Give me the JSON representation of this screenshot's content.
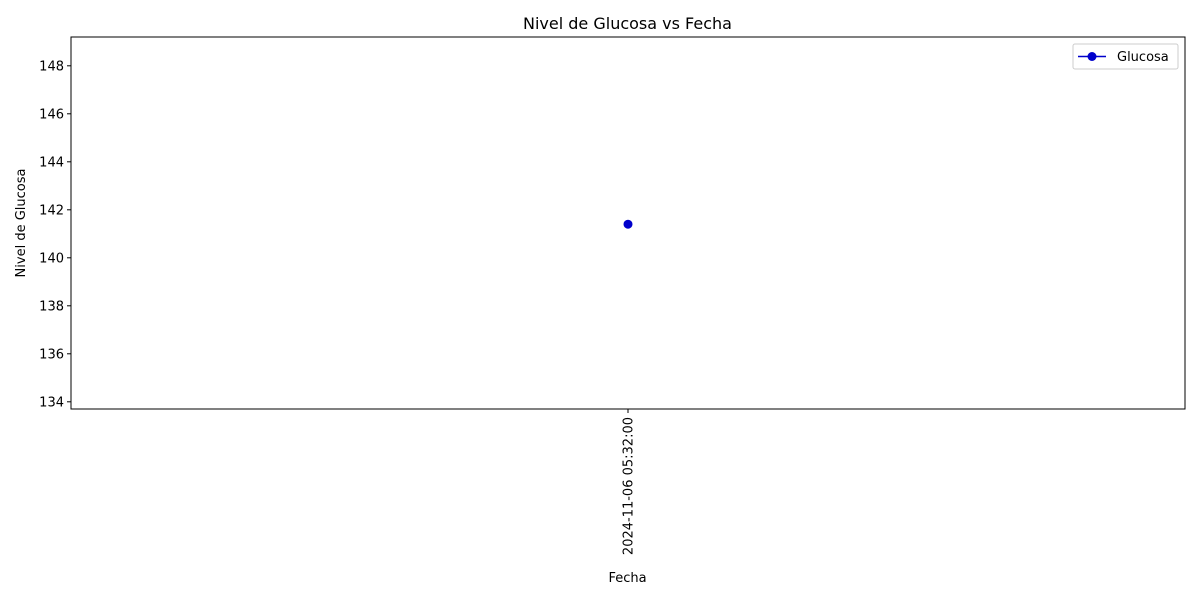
{
  "chart_data": {
    "type": "line",
    "title": "Nivel de Glucosa vs Fecha",
    "xlabel": "Fecha",
    "ylabel": "Nivel de Glucosa",
    "x": [
      "2024-11-06 05:32:00"
    ],
    "series": [
      {
        "name": "Glucosa",
        "values": [
          141.4
        ],
        "color": "#0000cc",
        "marker": "circle"
      }
    ],
    "ylim": [
      133.7,
      149.2
    ],
    "yticks": [
      134,
      136,
      138,
      140,
      142,
      144,
      146,
      148
    ],
    "ytick_labels": [
      "134",
      "136",
      "138",
      "140",
      "142",
      "144",
      "146",
      "148"
    ],
    "grid": false,
    "legend": "top-right",
    "xtick_rotation": 90
  }
}
